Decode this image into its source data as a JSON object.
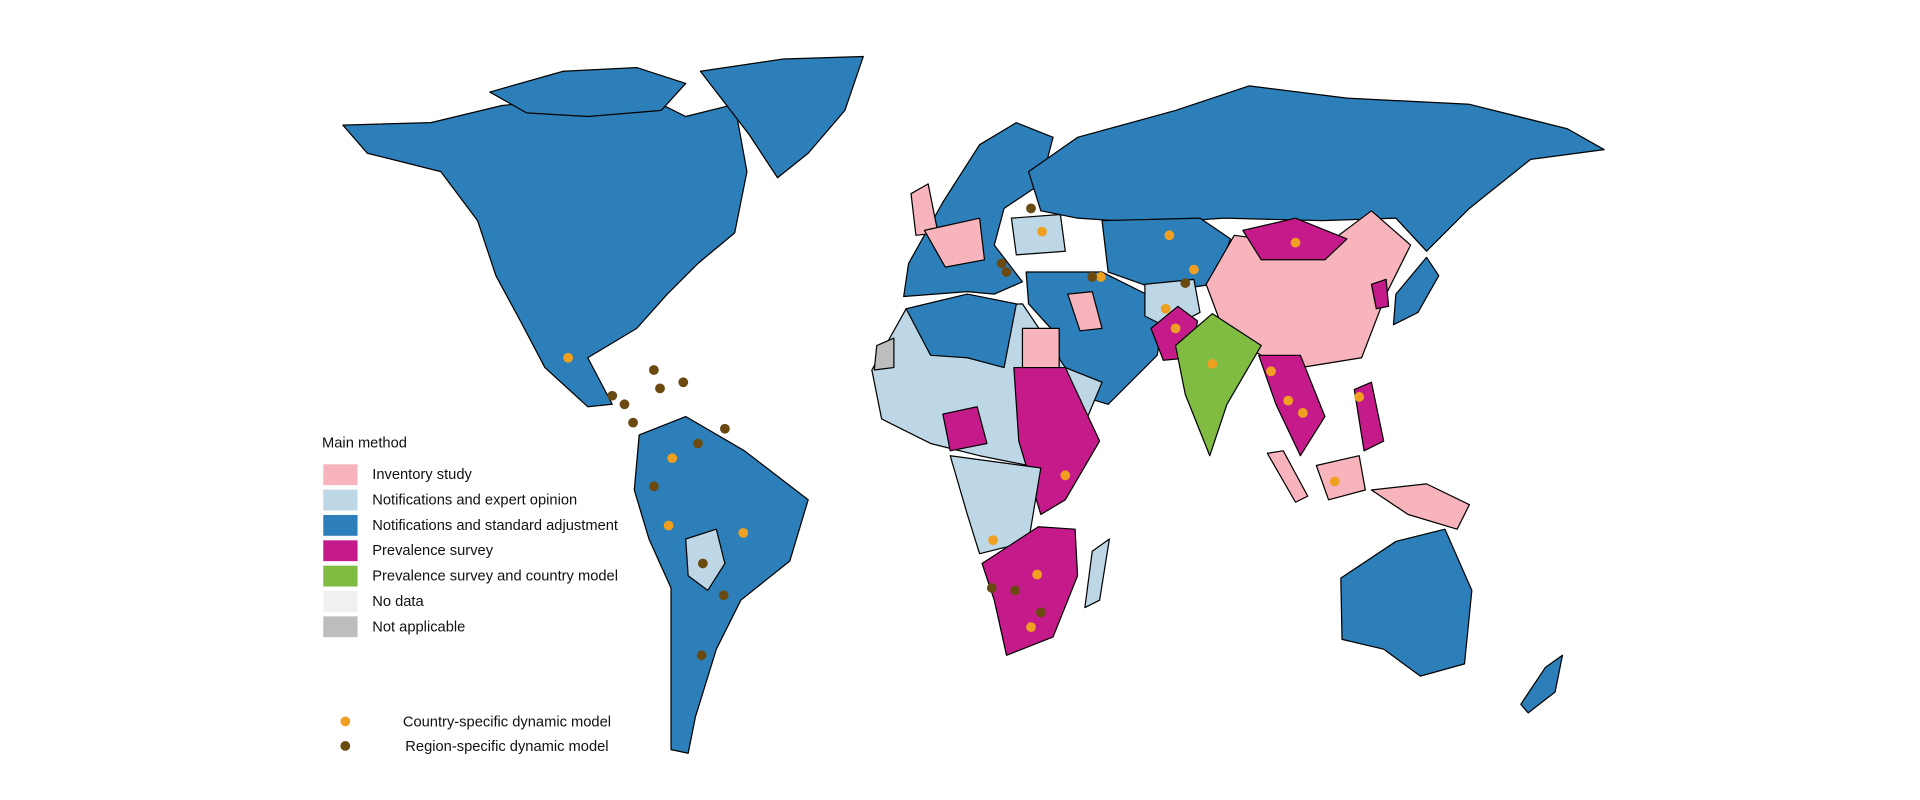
{
  "legend": {
    "title": "Main method",
    "items": [
      {
        "label": "Inventory study",
        "color": "#f8b4bc"
      },
      {
        "label": "Notifications and expert opinion",
        "color": "#bdd7e7"
      },
      {
        "label": "Notifications and standard adjustment",
        "color": "#2c7fb8"
      },
      {
        "label": "Prevalence survey",
        "color": "#c51b8a"
      },
      {
        "label": "Prevalence survey and country model",
        "color": "#7fbc41"
      },
      {
        "label": "No data",
        "color": "#f0f0f0"
      },
      {
        "label": "Not applicable",
        "color": "#bdbdbd"
      }
    ],
    "markers": [
      {
        "label": "Country-specific dynamic model",
        "color": "#f0a020"
      },
      {
        "label": "Region-specific dynamic model",
        "color": "#6b4a12"
      }
    ]
  }
}
